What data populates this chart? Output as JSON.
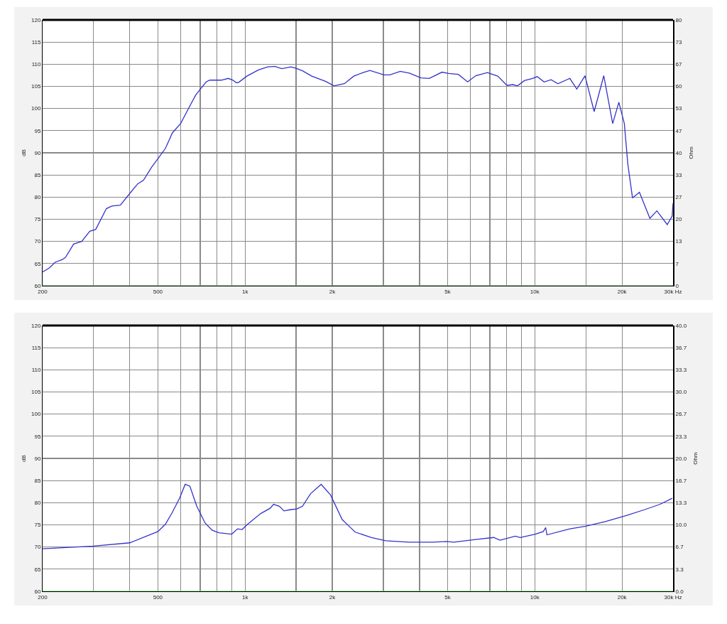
{
  "chart_data": [
    {
      "type": "line",
      "ylabel": "dB",
      "y2label": "Ohm",
      "log": "x",
      "grid": true,
      "marker": "none",
      "line_style": "solid",
      "xlim": [
        200,
        30000
      ],
      "xticks": [
        {
          "value": 200,
          "label": "200"
        },
        {
          "value": 300,
          "label": null
        },
        {
          "value": 400,
          "label": null
        },
        {
          "value": 500,
          "label": "500"
        },
        {
          "value": 600,
          "label": null
        },
        {
          "value": 700,
          "label": null
        },
        {
          "value": 800,
          "label": null
        },
        {
          "value": 900,
          "label": null
        },
        {
          "value": 1000,
          "label": "1k"
        },
        {
          "value": 1500,
          "label": null
        },
        {
          "value": 2000,
          "label": "2k"
        },
        {
          "value": 3000,
          "label": null
        },
        {
          "value": 4000,
          "label": null
        },
        {
          "value": 5000,
          "label": "5k"
        },
        {
          "value": 6000,
          "label": null
        },
        {
          "value": 7000,
          "label": null
        },
        {
          "value": 8000,
          "label": null
        },
        {
          "value": 9000,
          "label": null
        },
        {
          "value": 10000,
          "label": "10k"
        },
        {
          "value": 15000,
          "label": null
        },
        {
          "value": 20000,
          "label": "20k"
        },
        {
          "value": 30000,
          "label": "30k Hz"
        }
      ],
      "ylim": [
        60,
        120
      ],
      "yticks": [
        60,
        65,
        70,
        75,
        80,
        85,
        90,
        95,
        100,
        105,
        110,
        115,
        120
      ],
      "y2lim": [
        0,
        80
      ],
      "y2ticks": [
        0,
        {
          "value": 6.67,
          "label": "7"
        },
        {
          "value": 13.33,
          "label": "13"
        },
        20,
        {
          "value": 26.67,
          "label": "27"
        },
        {
          "value": 33.33,
          "label": "33"
        },
        40,
        {
          "value": 46.67,
          "label": "47"
        },
        {
          "value": 53.33,
          "label": "53"
        },
        60,
        {
          "value": 66.67,
          "label": "67"
        },
        {
          "value": 73.33,
          "label": "73"
        },
        80
      ],
      "series": [
        {
          "color": "#3333cc",
          "x": [
            200,
            211,
            221,
            234,
            240,
            256,
            273,
            291,
            305,
            332,
            347,
            371,
            403,
            426,
            446,
            475,
            503,
            531,
            561,
            599,
            639,
            675,
            707,
            734,
            755,
            828,
            875,
            908,
            933,
            951,
            1014,
            1112,
            1197,
            1265,
            1338,
            1440,
            1494,
            1578,
            1699,
            1900,
            2026,
            2202,
            2372,
            2552,
            2698,
            3014,
            3161,
            3432,
            3692,
            4046,
            4320,
            4780,
            5048,
            5446,
            5862,
            6252,
            6856,
            7448,
            8019,
            8396,
            8710,
            9206,
            9821,
            10190,
            10770,
            11380,
            12020,
            13210,
            13960,
            14900,
            16030,
            17300,
            18570,
            19500,
            20370,
            20940,
            21740,
            22970,
            24960,
            26380,
            28650,
            29790,
            30000
          ],
          "values": [
            63.1,
            64.0,
            65.3,
            65.9,
            66.4,
            69.4,
            70.0,
            72.3,
            72.7,
            77.4,
            78.0,
            78.2,
            81.1,
            83.0,
            83.8,
            86.7,
            88.9,
            91.0,
            94.5,
            96.6,
            100.1,
            103.0,
            104.7,
            106.0,
            106.4,
            106.4,
            106.8,
            106.4,
            105.8,
            105.9,
            107.3,
            108.7,
            109.4,
            109.5,
            109.0,
            109.4,
            109.1,
            108.5,
            107.3,
            106.1,
            105.1,
            105.6,
            107.3,
            108.1,
            108.6,
            107.6,
            107.6,
            108.4,
            108.0,
            106.9,
            106.8,
            108.2,
            107.9,
            107.7,
            106.0,
            107.4,
            108.1,
            107.3,
            105.2,
            105.4,
            105.1,
            106.3,
            106.8,
            107.2,
            106.0,
            106.5,
            105.6,
            106.8,
            104.4,
            107.4,
            99.3,
            107.4,
            96.6,
            101.4,
            96.6,
            87.5,
            79.8,
            81.1,
            75.2,
            76.9,
            73.8,
            75.7,
            78.6
          ]
        },
        {
          "color": "#80d880",
          "axis": "y2",
          "x": [
            200,
            30000
          ],
          "values": [
            0,
            0
          ]
        }
      ]
    },
    {
      "type": "line",
      "ylabel": "dB",
      "y2label": "Ohm",
      "log": "x",
      "grid": true,
      "marker": "none",
      "line_style": "solid",
      "xlim": [
        200,
        30000
      ],
      "xticks": [
        {
          "value": 200,
          "label": "200"
        },
        {
          "value": 300,
          "label": null
        },
        {
          "value": 400,
          "label": null
        },
        {
          "value": 500,
          "label": "500"
        },
        {
          "value": 600,
          "label": null
        },
        {
          "value": 700,
          "label": null
        },
        {
          "value": 800,
          "label": null
        },
        {
          "value": 900,
          "label": null
        },
        {
          "value": 1000,
          "label": "1k"
        },
        {
          "value": 1500,
          "label": null
        },
        {
          "value": 2000,
          "label": "2k"
        },
        {
          "value": 3000,
          "label": null
        },
        {
          "value": 4000,
          "label": null
        },
        {
          "value": 5000,
          "label": "5k"
        },
        {
          "value": 6000,
          "label": null
        },
        {
          "value": 7000,
          "label": null
        },
        {
          "value": 8000,
          "label": null
        },
        {
          "value": 9000,
          "label": null
        },
        {
          "value": 10000,
          "label": "10k"
        },
        {
          "value": 15000,
          "label": null
        },
        {
          "value": 20000,
          "label": "20k"
        },
        {
          "value": 30000,
          "label": "30k Hz"
        }
      ],
      "ylim": [
        60,
        120
      ],
      "yticks": [
        60,
        65,
        70,
        75,
        80,
        85,
        90,
        95,
        100,
        105,
        110,
        115,
        120
      ],
      "y2lim": [
        0,
        40
      ],
      "y2ticks": [
        {
          "value": 0,
          "label": "0.0"
        },
        {
          "value": 3.33,
          "label": "3.3"
        },
        {
          "value": 6.67,
          "label": "6.7"
        },
        {
          "value": 10,
          "label": "10.0"
        },
        {
          "value": 13.33,
          "label": "13.3"
        },
        {
          "value": 16.67,
          "label": "16.7"
        },
        {
          "value": 20,
          "label": "20.0"
        },
        {
          "value": 23.33,
          "label": "23.3"
        },
        {
          "value": 26.67,
          "label": "26.7"
        },
        {
          "value": 30,
          "label": "30.0"
        },
        {
          "value": 33.33,
          "label": "33.3"
        },
        {
          "value": 36.67,
          "label": "36.7"
        },
        {
          "value": 40,
          "label": "40.0"
        }
      ],
      "series": [
        {
          "color": "#3333cc",
          "axis": "y2",
          "x": [
            200,
            300,
            400,
            500,
            531,
            561,
            594,
            621,
            645,
            681,
            727,
            769,
            812,
            899,
            942,
            977,
            1014,
            1132,
            1220,
            1254,
            1313,
            1362,
            1440,
            1508,
            1578,
            1683,
            1830,
            1972,
            2163,
            2284,
            2400,
            2730,
            3060,
            3690,
            4440,
            4960,
            5250,
            6240,
            7210,
            7580,
            8570,
            8900,
            10040,
            10700,
            10900,
            11010,
            13210,
            15000,
            17520,
            20690,
            23980,
            27070,
            29790
          ],
          "values": [
            6.4,
            6.8,
            7.3,
            9.0,
            10.1,
            11.9,
            14.0,
            16.1,
            15.8,
            12.8,
            10.3,
            9.2,
            8.8,
            8.6,
            9.4,
            9.3,
            10.0,
            11.7,
            12.5,
            13.1,
            12.8,
            12.1,
            12.3,
            12.4,
            12.8,
            14.7,
            16.1,
            14.5,
            10.8,
            9.8,
            8.9,
            8.1,
            7.6,
            7.4,
            7.4,
            7.5,
            7.4,
            7.8,
            8.1,
            7.7,
            8.3,
            8.1,
            8.6,
            9.0,
            9.6,
            8.5,
            9.4,
            9.8,
            10.5,
            11.4,
            12.3,
            13.1,
            14.0
          ]
        },
        {
          "color": "#80d880",
          "x": [
            200,
            30000
          ],
          "values": [
            60,
            60
          ]
        }
      ]
    }
  ]
}
